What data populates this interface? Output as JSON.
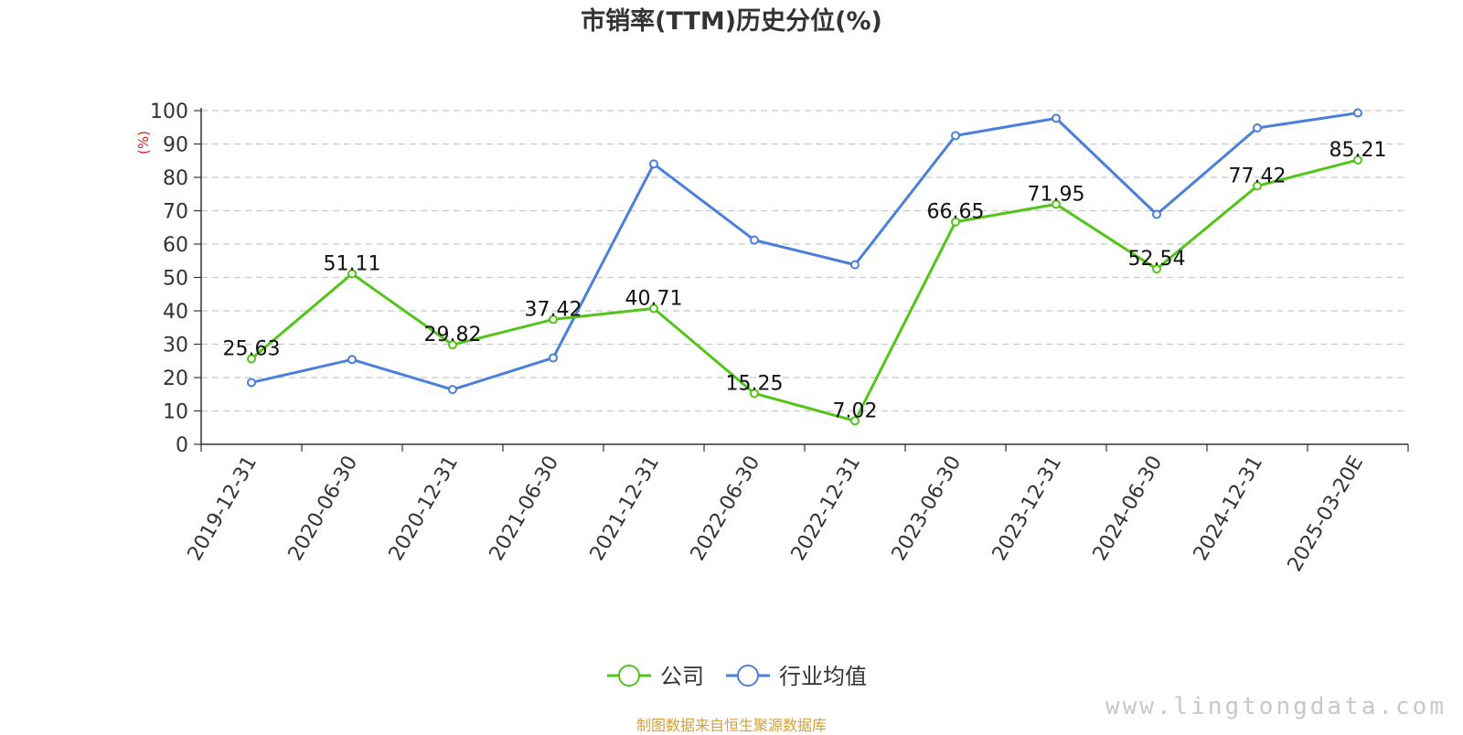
{
  "chart_data": {
    "type": "line",
    "title": "市销率(TTM)历史分位(%)",
    "ylabel": "(%)",
    "ylim": [
      0,
      100
    ],
    "yticks": [
      0,
      10,
      20,
      30,
      40,
      50,
      60,
      70,
      80,
      90,
      100
    ],
    "grid": true,
    "legend_position": "bottom-center",
    "categories": [
      "2019-12-31",
      "2020-06-30",
      "2020-12-31",
      "2021-06-30",
      "2021-12-31",
      "2022-06-30",
      "2022-12-31",
      "2023-06-30",
      "2023-12-31",
      "2024-06-30",
      "2024-12-31",
      "2025-03-20E"
    ],
    "series": [
      {
        "name": "公司",
        "color": "#52c41a",
        "values": [
          25.63,
          51.11,
          29.82,
          37.42,
          40.71,
          15.25,
          7.02,
          66.65,
          71.95,
          52.54,
          77.42,
          85.21
        ],
        "labels": [
          "25.63",
          "51.11",
          "29.82",
          "37.42",
          "40.71",
          "15.25",
          "7.02",
          "66.65",
          "71.95",
          "52.54",
          "77.42",
          "85.21"
        ]
      },
      {
        "name": "行业均值",
        "color": "#4a7fdc",
        "values": [
          18.5,
          25.4,
          16.4,
          25.9,
          84.0,
          61.2,
          53.8,
          92.5,
          97.7,
          68.9,
          94.8,
          99.3
        ]
      }
    ]
  },
  "footer": {
    "source": "制图数据来自恒生聚源数据库",
    "watermark": "www.lingtongdata.com"
  }
}
